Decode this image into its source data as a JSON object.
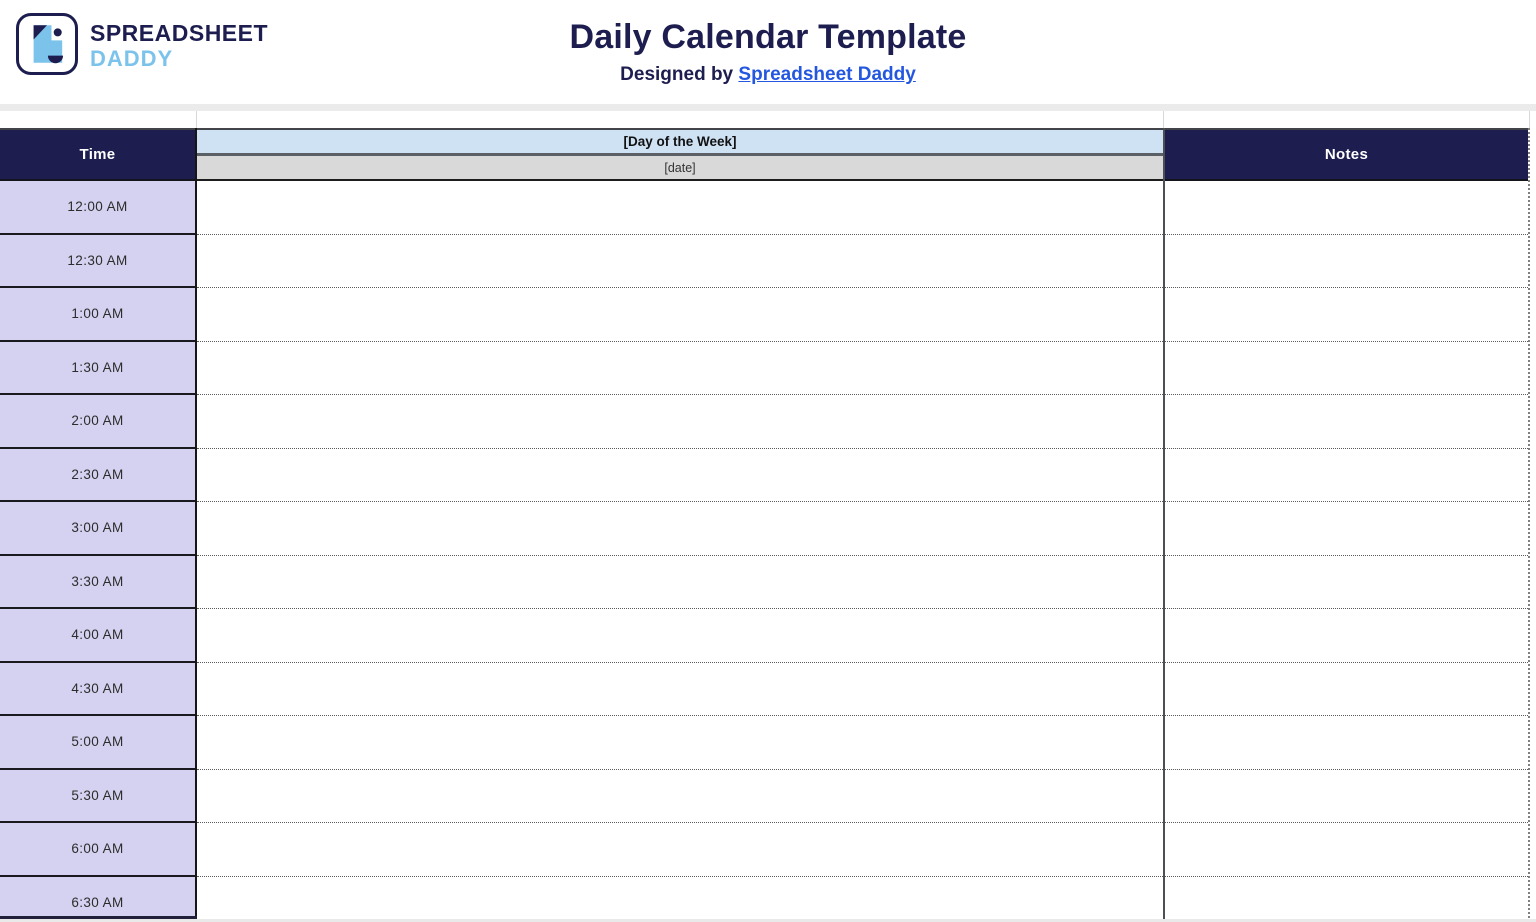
{
  "brand": {
    "logo_icon": "dog-face-logo",
    "line1": "SPREADSHEET",
    "line2": "DADDY"
  },
  "header": {
    "title": "Daily Calendar Template",
    "subtitle_prefix": "Designed by",
    "subtitle_link_text": "Spreadsheet Daddy"
  },
  "table": {
    "time_header": "Time",
    "day_header": "[Day of the Week]",
    "date_header": "[date]",
    "notes_header": "Notes",
    "times": [
      "12:00 AM",
      "12:30 AM",
      "1:00 AM",
      "1:30 AM",
      "2:00 AM",
      "2:30 AM",
      "3:00 AM",
      "3:30 AM",
      "4:00 AM",
      "4:30 AM",
      "5:00 AM",
      "5:30 AM",
      "6:00 AM",
      "6:30 AM"
    ]
  },
  "colors": {
    "navy": "#1d1d4f",
    "header_blue": "#cfe2f3",
    "header_gray": "#d9d9d9",
    "lavender": "#d4d2f0",
    "link_blue": "#2457e0",
    "logo_blue": "#7cc3ec"
  }
}
